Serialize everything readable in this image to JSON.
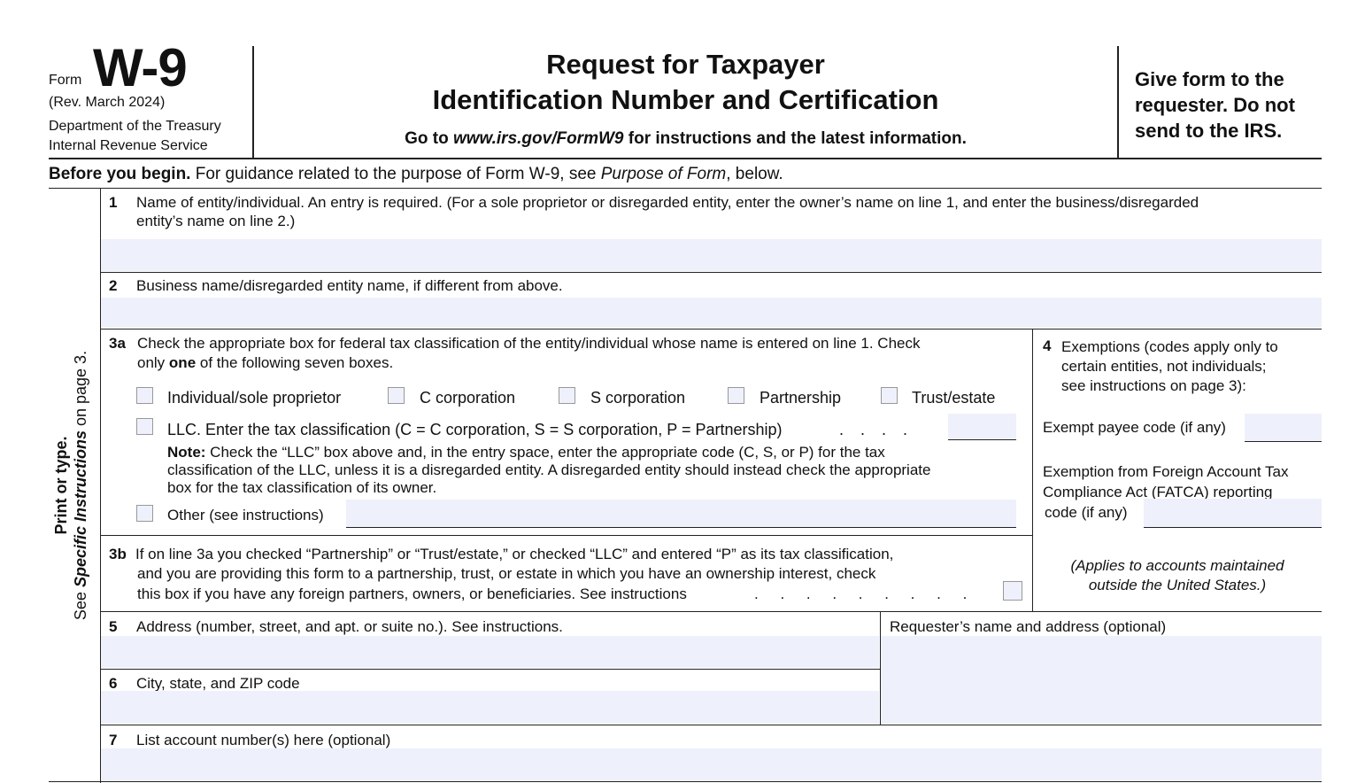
{
  "header": {
    "form_label": "Form",
    "form_number": "W-9",
    "revision": "(Rev. March 2024)",
    "department": "Department of the Treasury",
    "agency": "Internal Revenue Service",
    "title_line1": "Request for Taxpayer",
    "title_line2": "Identification Number and Certification",
    "goto_prefix": "Go to ",
    "goto_url": "www.irs.gov/FormW9",
    "goto_suffix": " for instructions and the latest information.",
    "give_form": [
      "Give form to the",
      "requester. Do not",
      "send to the IRS."
    ]
  },
  "before": {
    "bold": "Before you begin.",
    "text": " For guidance related to the purpose of Form W-9, see ",
    "italic": "Purpose of Form",
    "end": ", below."
  },
  "side": {
    "bold": "Print or type.",
    "see": "See ",
    "italic": "Specific Instructions",
    "rest": " on page 3."
  },
  "line1": {
    "num": "1",
    "text1": "Name of entity/individual. An entry is required. (For a sole proprietor or disregarded entity, enter the owner’s name on line 1, and enter the business/disregarded",
    "text2": "entity’s name on line 2.)",
    "value": ""
  },
  "line2": {
    "num": "2",
    "text": "Business name/disregarded entity name, if different from above.",
    "value": ""
  },
  "line3a": {
    "num": "3a",
    "text1": "Check the appropriate box for federal tax classification of the entity/individual whose name is entered on line 1. Check",
    "text2a": "only ",
    "text2b": "one",
    "text2c": " of the following seven boxes.",
    "options": [
      "Individual/sole proprietor",
      "C corporation",
      "S corporation",
      "Partnership",
      "Trust/estate"
    ],
    "llc": "LLC. Enter the tax classification (C = C corporation, S = S corporation, P = Partnership)",
    "llc_dots": ". . . .",
    "note_bold": "Note:",
    "note1": " Check the “LLC” box above and, in the entry space, enter the appropriate code (C, S, or P) for the tax",
    "note2": "classification of the LLC, unless it is a disregarded entity. A disregarded entity should instead check the appropriate",
    "note3": "box for the tax classification of its owner.",
    "other": "Other (see instructions)"
  },
  "line3b": {
    "num": "3b",
    "text1": "If on line 3a you checked “Partnership” or “Trust/estate,” or checked “LLC” and entered “P” as its tax classification,",
    "text2": "and you are providing this form to a partnership, trust, or estate in which you have an ownership interest, check",
    "text3": "this box if you have any foreign partners, owners, or beneficiaries. See instructions",
    "dots": ". . . . . . . . ."
  },
  "line4": {
    "num": "4",
    "text1": "Exemptions (codes apply only to",
    "text2": "certain entities, not individuals;",
    "text3": "see instructions on page 3):",
    "exempt_payee": "Exempt payee code (if any)",
    "fatca1": "Exemption from Foreign Account Tax",
    "fatca2": "Compliance Act (FATCA) reporting",
    "fatca3": "code (if any)",
    "applies1": "(Applies to accounts maintained",
    "applies2": "outside the United States.)"
  },
  "line5": {
    "num": "5",
    "text": "Address (number, street, and apt. or suite no.). See instructions."
  },
  "requester": {
    "text": "Requester’s name and address (optional)"
  },
  "line6": {
    "num": "6",
    "text": "City, state, and ZIP code"
  },
  "line7": {
    "num": "7",
    "text": "List account number(s) here (optional)"
  },
  "colors": {
    "field_fill": "#eef1fb",
    "ink": "#111111"
  }
}
